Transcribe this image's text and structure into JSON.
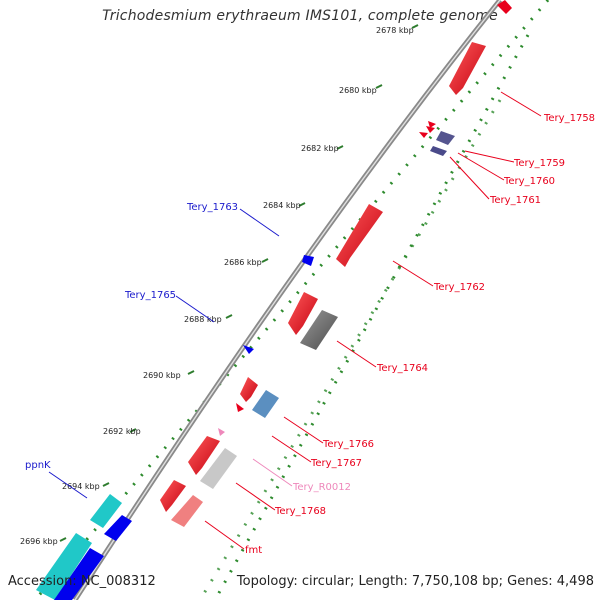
{
  "header": {
    "title": "Trichodesmium erythraeum IMS101, complete genome"
  },
  "footer": {
    "accession": "Accession: NC_008312",
    "summary": "Topology: circular; Length: 7,750,108 bp; Genes: 4,498"
  },
  "ruler": [
    {
      "label": "2678 kbp"
    },
    {
      "label": "2680 kbp"
    },
    {
      "label": "2682 kbp"
    },
    {
      "label": "2684 kbp"
    },
    {
      "label": "2686 kbp"
    },
    {
      "label": "2688 kbp"
    },
    {
      "label": "2690 kbp"
    },
    {
      "label": "2692 kbp"
    },
    {
      "label": "2694 kbp"
    },
    {
      "label": "2696 kbp"
    }
  ],
  "genes": [
    {
      "label": "Tery_1758",
      "color": "#e8001c"
    },
    {
      "label": "Tery_1759",
      "color": "#e8001c"
    },
    {
      "label": "Tery_1760",
      "color": "#e8001c"
    },
    {
      "label": "Tery_1761",
      "color": "#e8001c"
    },
    {
      "label": "Tery_1762",
      "color": "#e8001c"
    },
    {
      "label": "Tery_1763",
      "color": "#1a1acc"
    },
    {
      "label": "Tery_1764",
      "color": "#e8001c"
    },
    {
      "label": "Tery_1765",
      "color": "#1a1acc"
    },
    {
      "label": "Tery_1766",
      "color": "#e8001c"
    },
    {
      "label": "Tery_1767",
      "color": "#e8001c"
    },
    {
      "label": "Tery_R0012",
      "color": "#ee88bb"
    },
    {
      "label": "Tery_1768",
      "color": "#e8001c"
    },
    {
      "label": "fmt",
      "color": "#e8001c"
    },
    {
      "label": "ppnK",
      "color": "#1a1acc"
    }
  ],
  "colors": {
    "backbone": "#8a8a8a",
    "dots": "#2e8b2e",
    "forward_gene": "#e8001c",
    "reverse_gene": "#0000ee"
  }
}
